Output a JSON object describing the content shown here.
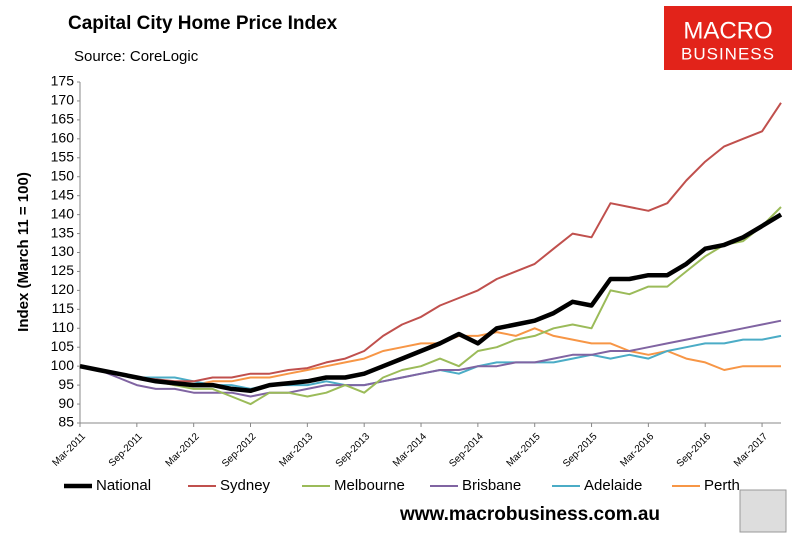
{
  "chart_data": {
    "type": "line",
    "title": "Capital City Home Price Index",
    "subtitle": "Source: CoreLogic",
    "ylabel": "Index (March 11 = 100)",
    "categories": [
      "Mar-2011",
      null,
      null,
      "Sep-2011",
      null,
      null,
      "Mar-2012",
      null,
      null,
      "Sep-2012",
      null,
      null,
      "Mar-2013",
      null,
      null,
      "Sep-2013",
      null,
      null,
      "Mar-2014",
      null,
      null,
      "Sep-2014",
      null,
      null,
      "Mar-2015",
      null,
      null,
      "Sep-2015",
      null,
      null,
      "Mar-2016",
      null,
      null,
      "Sep-2016",
      null,
      null,
      "Mar-2017",
      null
    ],
    "series": [
      {
        "name": "National",
        "color": "#000000",
        "width": 4.5,
        "values": [
          100,
          99,
          98,
          97,
          96,
          95.5,
          95,
          95,
          94,
          93.5,
          95,
          95.5,
          96,
          97,
          97,
          98,
          100,
          102,
          104,
          106,
          108.5,
          106,
          110,
          111,
          112,
          114,
          117,
          116,
          123,
          123,
          124,
          124,
          127,
          131,
          132,
          134,
          137,
          140
        ]
      },
      {
        "name": "Sydney",
        "color": "#c0504d",
        "width": 2,
        "values": [
          100,
          99,
          98,
          97,
          96.5,
          96,
          96,
          97,
          97,
          98,
          98,
          99,
          99.5,
          101,
          102,
          104,
          108,
          111,
          113,
          116,
          118,
          120,
          123,
          125,
          127,
          131,
          135,
          134,
          143,
          142,
          141,
          143,
          149,
          154,
          158,
          160,
          162,
          169.5
        ]
      },
      {
        "name": "Melbourne",
        "color": "#9bbb59",
        "width": 2,
        "values": [
          100,
          99,
          98,
          97,
          96,
          95,
          94,
          94,
          92,
          90,
          93,
          93,
          92,
          93,
          95,
          93,
          97,
          99,
          100,
          102,
          100,
          104,
          105,
          107,
          108,
          110,
          111,
          110,
          120,
          119,
          121,
          121,
          125,
          129,
          132,
          133,
          137,
          142
        ]
      },
      {
        "name": "Brisbane",
        "color": "#8064a2",
        "width": 2,
        "values": [
          100,
          99,
          97,
          95,
          94,
          94,
          93,
          93,
          93,
          92,
          93,
          93,
          94,
          95,
          95,
          95,
          96,
          97,
          98,
          99,
          99,
          100,
          100,
          101,
          101,
          102,
          103,
          103,
          104,
          104,
          105,
          106,
          107,
          108,
          109,
          110,
          111,
          112
        ]
      },
      {
        "name": "Adelaide",
        "color": "#4bacc6",
        "width": 2,
        "values": [
          100,
          99,
          98,
          97,
          97,
          97,
          96,
          95,
          95,
          94,
          95,
          95,
          95,
          96,
          95,
          95,
          96,
          97,
          98,
          99,
          98,
          100,
          101,
          101,
          101,
          101,
          102,
          103,
          102,
          103,
          102,
          104,
          105,
          106,
          106,
          107,
          107,
          108
        ]
      },
      {
        "name": "Perth",
        "color": "#f79646",
        "width": 2,
        "values": [
          100,
          99,
          98,
          97,
          96,
          95,
          95,
          96,
          96,
          97,
          97,
          98,
          99,
          100,
          101,
          102,
          104,
          105,
          106,
          106,
          108,
          108,
          109,
          108,
          110,
          108,
          107,
          106,
          106,
          104,
          103,
          104,
          102,
          101,
          99,
          100,
          100,
          100
        ]
      }
    ],
    "ylim": [
      85,
      175
    ],
    "yticks": [
      85,
      90,
      95,
      100,
      105,
      110,
      115,
      120,
      125,
      130,
      135,
      140,
      145,
      150,
      155,
      160,
      165,
      170,
      175
    ],
    "grid": false,
    "legend": "bottom"
  },
  "logo": {
    "line1": "MACRO",
    "line2": "BUSINESS"
  },
  "footer": "www.macrobusiness.com.au"
}
